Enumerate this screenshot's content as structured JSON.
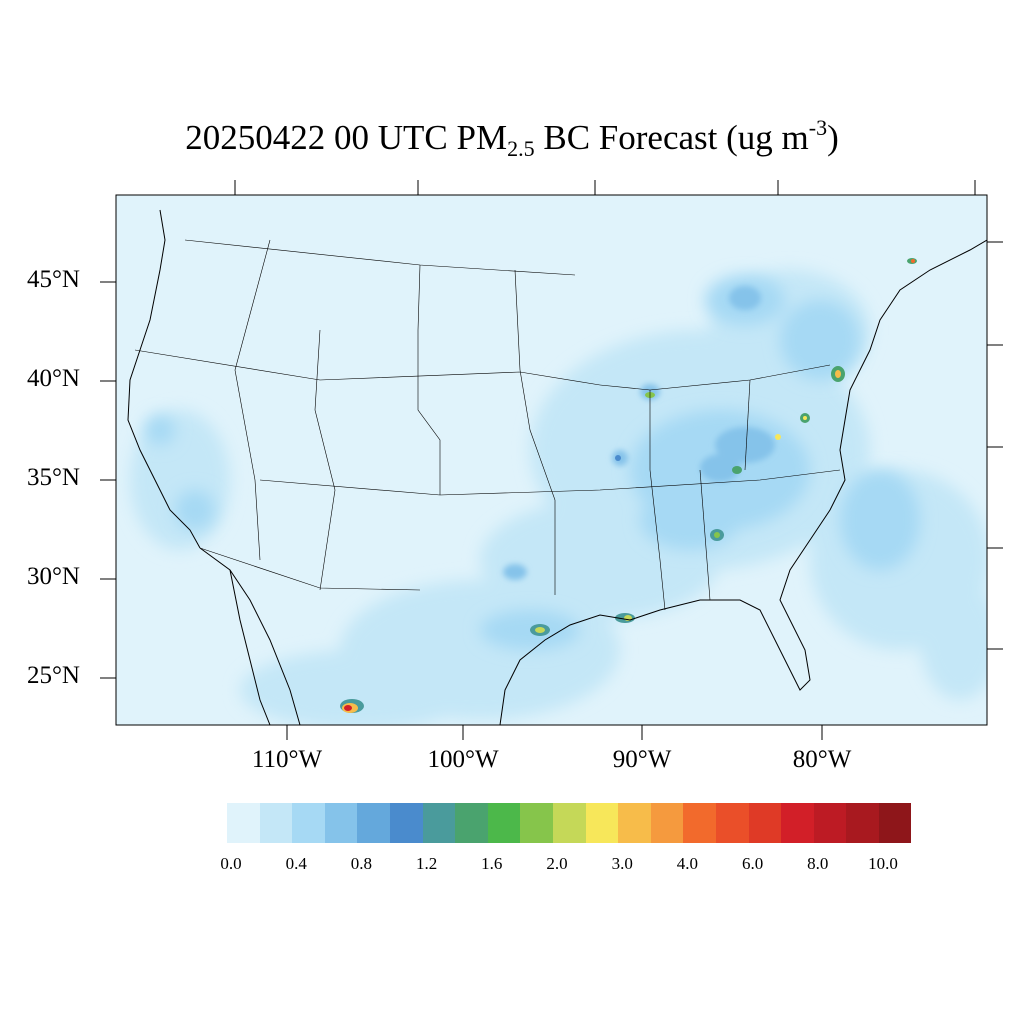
{
  "title": {
    "date": "20250422",
    "hour": "00 UTC",
    "species": "PM",
    "species_sub": "2.5",
    "product": "BC Forecast (ug m",
    "unit_sup": "-3",
    "close": ")"
  },
  "lat_labels": [
    "45°N",
    "40°N",
    "35°N",
    "30°N",
    "25°N"
  ],
  "lon_labels": [
    "110°W",
    "100°W",
    "90°W",
    "80°W"
  ],
  "colorbar": {
    "colors": [
      "#e0f3fb",
      "#c4e7f7",
      "#a6d9f4",
      "#85c3ea",
      "#64a8dc",
      "#4a8bcd",
      "#4a9b9c",
      "#4aa36e",
      "#4cb84a",
      "#86c54b",
      "#c5d858",
      "#f7e75a",
      "#f7bc4a",
      "#f59a3e",
      "#f26a2c",
      "#ea4f29",
      "#df3a26",
      "#d21f28",
      "#bd1b24",
      "#a8191f",
      "#8e161a"
    ],
    "labels": [
      "0.0",
      "0.4",
      "0.8",
      "1.2",
      "1.6",
      "2.0",
      "3.0",
      "4.0",
      "6.0",
      "8.0",
      "10.0"
    ]
  }
}
